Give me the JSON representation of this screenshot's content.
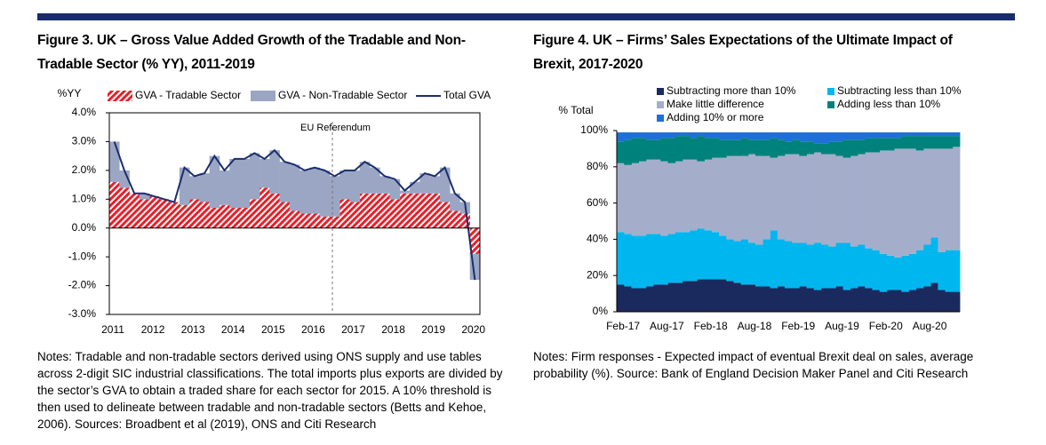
{
  "chart_data": [
    {
      "type": "bar",
      "stacked": true,
      "title": "Figure 3. UK – Gross Value Added Growth of the Tradable and Non-Tradable Sector (% YY), 2011-2019",
      "y_label": "%YY",
      "annotation": "EU Referendum",
      "notes": "Notes: Tradable and non-tradable sectors derived using ONS supply and use tables across 2-digit SIC industrial classifications. The total imports plus exports are divided by the sector’s GVA to obtain a traded share for each sector for 2015. A 10% threshold is then used to delineate between tradable and non-tradable sectors (Betts and Kehoe, 2006). Sources: Broadbent et al (2019), ONS and Citi Research",
      "categories": [
        "2011",
        null,
        null,
        null,
        "2012",
        null,
        null,
        null,
        "2013",
        null,
        null,
        null,
        "2014",
        null,
        null,
        null,
        "2015",
        null,
        null,
        null,
        "2016",
        null,
        null,
        null,
        "2017",
        null,
        null,
        null,
        "2018",
        null,
        null,
        null,
        "2019",
        null,
        null,
        null,
        "2020"
      ],
      "ylim": [
        -3,
        4
      ],
      "yticks": [
        {
          "value": 4,
          "label": "4.0%"
        },
        {
          "value": 3,
          "label": "3.0%"
        },
        {
          "value": 2,
          "label": "2.0%"
        },
        {
          "value": 1,
          "label": "1.0%"
        },
        {
          "value": 0,
          "label": "0.0%"
        },
        {
          "value": -1,
          "label": "-1.0%"
        },
        {
          "value": -2,
          "label": "-2.0%"
        },
        {
          "value": -3,
          "label": "-3.0%"
        }
      ],
      "series": [
        {
          "name": "GVA - Tradable Sector",
          "color": "#e8202a",
          "pattern": "hatch",
          "values": [
            1.6,
            1.4,
            1.2,
            1.0,
            1.1,
            1.0,
            0.9,
            0.8,
            1.0,
            0.9,
            0.7,
            0.8,
            0.7,
            0.7,
            1.0,
            1.4,
            1.2,
            0.9,
            0.6,
            0.5,
            0.5,
            0.4,
            0.4,
            1.0,
            0.9,
            1.2,
            1.2,
            1.2,
            1.0,
            1.2,
            1.2,
            1.2,
            1.2,
            0.9,
            0.6,
            0.5,
            -0.9
          ]
        },
        {
          "name": "GVA - Non-Tradable Sector",
          "color": "#9ba6c4",
          "values": [
            1.4,
            0.6,
            0.0,
            0.2,
            0.0,
            0.0,
            0.0,
            1.3,
            0.8,
            1.0,
            1.8,
            1.2,
            1.7,
            1.7,
            1.6,
            1.0,
            1.5,
            1.4,
            1.6,
            1.5,
            1.6,
            1.6,
            1.4,
            1.0,
            1.1,
            1.1,
            0.9,
            0.6,
            0.7,
            0.1,
            0.4,
            0.7,
            0.6,
            1.2,
            0.6,
            0.4,
            -0.9
          ]
        },
        {
          "name": "Total GVA",
          "color": "#1b2f6e",
          "type": "line",
          "values": [
            3.0,
            2.0,
            1.2,
            1.2,
            1.1,
            1.0,
            0.9,
            2.1,
            1.8,
            1.9,
            2.5,
            2.0,
            2.4,
            2.4,
            2.6,
            2.4,
            2.7,
            2.3,
            2.2,
            2.0,
            2.1,
            2.0,
            1.8,
            2.0,
            2.0,
            2.3,
            2.1,
            1.8,
            1.7,
            1.3,
            1.6,
            1.9,
            1.8,
            2.1,
            1.2,
            0.9,
            -1.8
          ]
        }
      ]
    },
    {
      "type": "area",
      "stacked": true,
      "title": "Figure 4. UK – Firms’ Sales Expectations of the Ultimate Impact of Brexit, 2017-2020",
      "y_label": "% Total",
      "notes": "Notes: Firm responses - Expected impact of eventual Brexit deal on sales, average probability (%). Source: Bank of England Decision Maker Panel and Citi Research",
      "categories": [
        "Feb-17",
        null,
        null,
        null,
        null,
        null,
        "Aug-17",
        null,
        null,
        null,
        null,
        null,
        "Feb-18",
        null,
        null,
        null,
        null,
        null,
        "Aug-18",
        null,
        null,
        null,
        null,
        null,
        "Feb-19",
        null,
        null,
        null,
        null,
        null,
        "Aug-19",
        null,
        null,
        null,
        null,
        null,
        "Feb-20",
        null,
        null,
        null,
        null,
        null,
        "Aug-20",
        null,
        null,
        null,
        null
      ],
      "ylim": [
        0,
        100
      ],
      "yticks": [
        {
          "value": 0,
          "label": "0%"
        },
        {
          "value": 20,
          "label": "20%"
        },
        {
          "value": 40,
          "label": "40%"
        },
        {
          "value": 60,
          "label": "60%"
        },
        {
          "value": 80,
          "label": "80%"
        },
        {
          "value": 100,
          "label": "100%"
        }
      ],
      "series": [
        {
          "name": "Subtracting more than 10%",
          "color": "#1b2a5e",
          "values": [
            15,
            14,
            13,
            13,
            14,
            15,
            15,
            16,
            16,
            17,
            17,
            18,
            18,
            18,
            18,
            17,
            16,
            15,
            15,
            14,
            14,
            13,
            14,
            13,
            13,
            14,
            13,
            12,
            13,
            13,
            14,
            12,
            13,
            14,
            13,
            12,
            11,
            12,
            12,
            11,
            12,
            13,
            14,
            16,
            12,
            11,
            11
          ]
        },
        {
          "name": "Subtracting less than 10%",
          "color": "#00b6ef",
          "values": [
            29,
            29,
            29,
            29,
            29,
            28,
            27,
            27,
            28,
            27,
            28,
            28,
            27,
            26,
            24,
            23,
            23,
            25,
            23,
            23,
            26,
            32,
            26,
            26,
            25,
            24,
            24,
            26,
            24,
            23,
            24,
            26,
            23,
            23,
            22,
            22,
            21,
            19,
            18,
            20,
            20,
            21,
            23,
            25,
            21,
            23,
            23
          ]
        },
        {
          "name": "Make little difference",
          "color": "#a4aecb",
          "values": [
            38,
            38,
            40,
            41,
            41,
            41,
            41,
            39,
            39,
            40,
            39,
            37,
            39,
            41,
            43,
            46,
            47,
            46,
            49,
            49,
            46,
            40,
            46,
            48,
            49,
            48,
            50,
            50,
            50,
            51,
            48,
            47,
            50,
            50,
            53,
            54,
            57,
            58,
            60,
            59,
            58,
            55,
            53,
            49,
            57,
            56,
            57
          ]
        },
        {
          "name": "Adding less than 10%",
          "color": "#00827c",
          "values": [
            12,
            14,
            14,
            13,
            11,
            11,
            13,
            14,
            14,
            13,
            12,
            14,
            12,
            11,
            10,
            9,
            9,
            10,
            8,
            9,
            9,
            11,
            9,
            7,
            8,
            8,
            7,
            5,
            6,
            7,
            8,
            10,
            9,
            8,
            8,
            8,
            7,
            7,
            6,
            7,
            7,
            8,
            7,
            7,
            7,
            7,
            6
          ]
        },
        {
          "name": "Adding 10% or more",
          "color": "#1f6fd8",
          "values": [
            5,
            4,
            3,
            3,
            4,
            4,
            3,
            3,
            2,
            2,
            3,
            2,
            3,
            3,
            4,
            4,
            4,
            3,
            4,
            4,
            4,
            3,
            4,
            5,
            4,
            5,
            5,
            6,
            6,
            5,
            5,
            4,
            4,
            4,
            3,
            3,
            3,
            3,
            3,
            2,
            2,
            2,
            2,
            2,
            2,
            2,
            2
          ]
        }
      ]
    }
  ]
}
